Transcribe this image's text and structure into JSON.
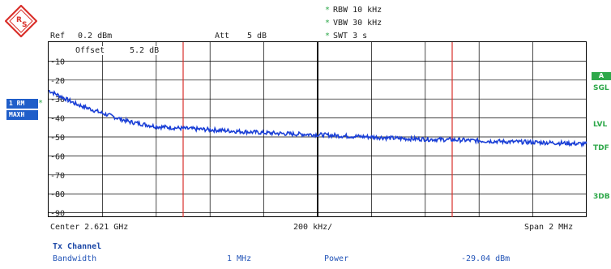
{
  "header": {
    "ref_label": "Ref",
    "ref_value": "0.2 dBm",
    "att_label": "Att",
    "att_value": "5 dB",
    "offset_label": "Offset",
    "offset_value": "5.2 dB",
    "rbw": "RBW 10 kHz",
    "vbw": "VBW 30 kHz",
    "swt": "SWT 3 s",
    "star": "*"
  },
  "trace_badge": {
    "line1": "1 RM",
    "line2": "MAXH",
    "star": "*"
  },
  "right_labels": {
    "a": "A",
    "sgl": "SGL",
    "lvl": "LVL",
    "tdf": "TDF",
    "db3": "3DB"
  },
  "y_ticks": [
    "-10",
    "-20",
    "-30",
    "-40",
    "-50",
    "-60",
    "-70",
    "-80",
    "-90"
  ],
  "footer": {
    "center": "Center 2.621 GHz",
    "div": "200 kHz/",
    "span": "Span 2 MHz"
  },
  "tx": {
    "title": "Tx Channel",
    "bandwidth_label": "Bandwidth",
    "bandwidth_value": "1 MHz",
    "power_label": "Power",
    "power_value": "-29.04 dBm"
  },
  "colors": {
    "trace": "#1a3fd6",
    "marker_line": "#d9302b",
    "grid": "#000000",
    "accent_green": "#2ea84a",
    "badge_blue": "#1f5ec9",
    "logo": "#d9302b"
  },
  "chart_data": {
    "type": "line",
    "x_center_ghz": 2.621,
    "x_span_mhz": 2,
    "x_div_khz": 200,
    "ylim": [
      -100,
      0.2
    ],
    "y_ticks": [
      -10,
      -20,
      -30,
      -40,
      -50,
      -60,
      -70,
      -80,
      -90
    ],
    "channel_lines_mhz_offset": [
      -0.5,
      0.5
    ],
    "series": [
      {
        "x_mhz_offset": [
          -1.0,
          -0.95,
          -0.9,
          -0.8,
          -0.7,
          -0.6,
          -0.5,
          -0.4,
          -0.3,
          -0.2,
          -0.1,
          0.0,
          0.1,
          0.2,
          0.3,
          0.4,
          0.5,
          0.6,
          0.7,
          0.8,
          0.9,
          1.0
        ],
        "values": [
          -25.5,
          -29.0,
          -32.5,
          -37.5,
          -42.0,
          -44.5,
          -45.5,
          -46.2,
          -47.0,
          -47.8,
          -48.4,
          -48.8,
          -49.5,
          -50.0,
          -50.8,
          -51.2,
          -51.5,
          -52.0,
          -52.5,
          -52.8,
          -53.2,
          -53.8
        ]
      }
    ]
  }
}
